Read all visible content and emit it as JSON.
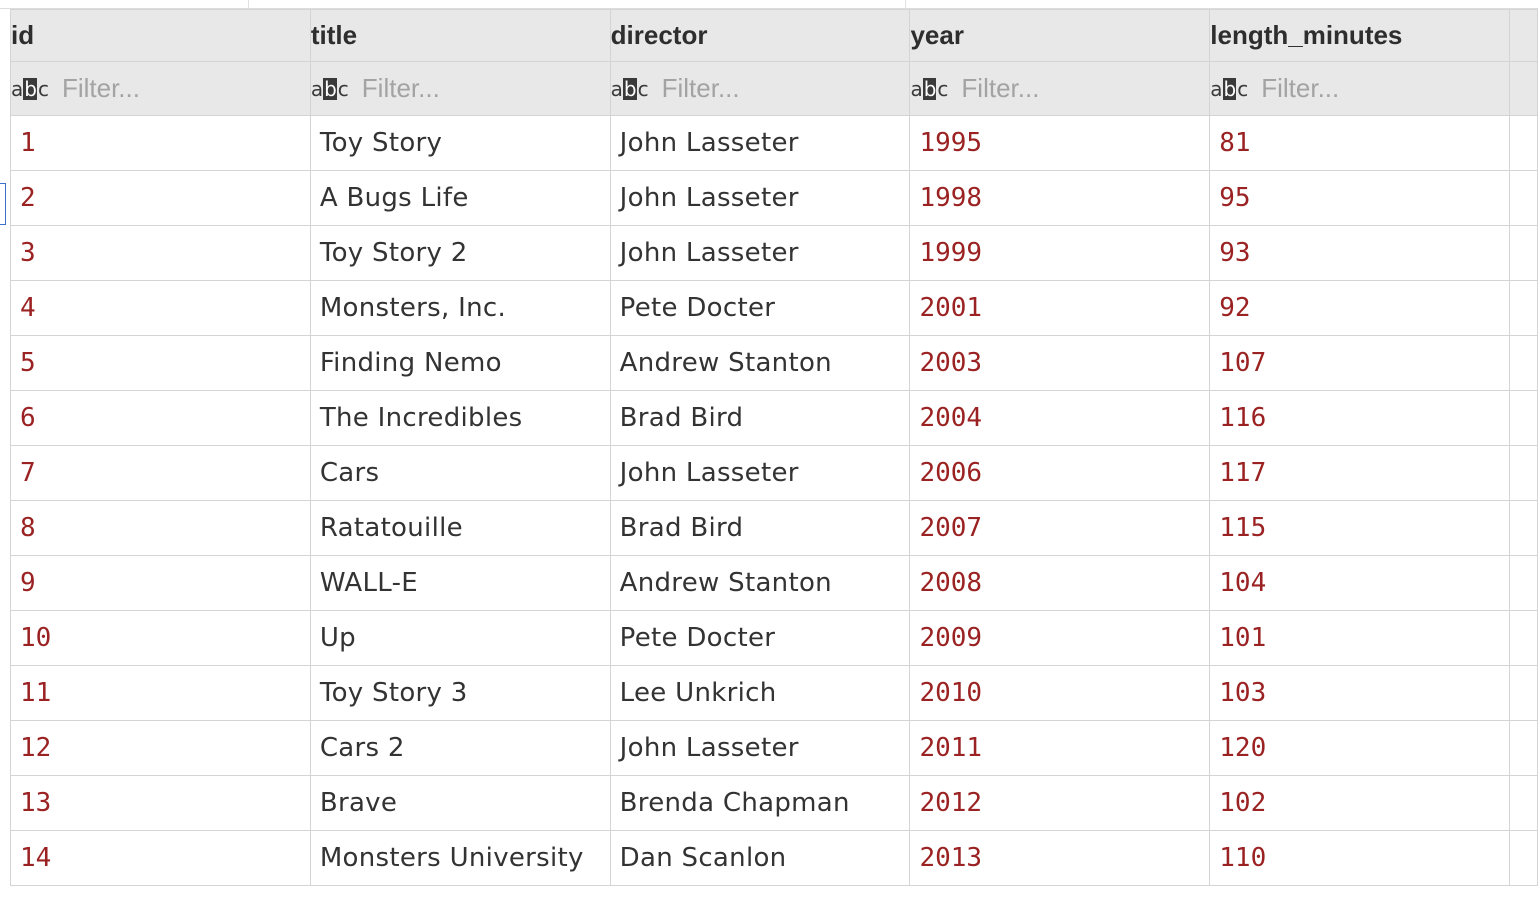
{
  "table": {
    "columns": [
      "id",
      "title",
      "director",
      "year",
      "length_minutes"
    ],
    "filter_placeholder": "Filter...",
    "filter_type_icon": "abc-text-type-icon",
    "rows": [
      [
        "1",
        "Toy Story",
        "John Lasseter",
        "1995",
        "81"
      ],
      [
        "2",
        "A Bugs Life",
        "John Lasseter",
        "1998",
        "95"
      ],
      [
        "3",
        "Toy Story 2",
        "John Lasseter",
        "1999",
        "93"
      ],
      [
        "4",
        "Monsters, Inc.",
        "Pete Docter",
        "2001",
        "92"
      ],
      [
        "5",
        "Finding Nemo",
        "Andrew Stanton",
        "2003",
        "107"
      ],
      [
        "6",
        "The Incredibles",
        "Brad Bird",
        "2004",
        "116"
      ],
      [
        "7",
        "Cars",
        "John Lasseter",
        "2006",
        "117"
      ],
      [
        "8",
        "Ratatouille",
        "Brad Bird",
        "2007",
        "115"
      ],
      [
        "9",
        "WALL-E",
        "Andrew Stanton",
        "2008",
        "104"
      ],
      [
        "10",
        "Up",
        "Pete Docter",
        "2009",
        "101"
      ],
      [
        "11",
        "Toy Story 3",
        "Lee Unkrich",
        "2010",
        "103"
      ],
      [
        "12",
        "Cars 2",
        "John Lasseter",
        "2011",
        "120"
      ],
      [
        "13",
        "Brave",
        "Brenda Chapman",
        "2012",
        "102"
      ],
      [
        "14",
        "Monsters University",
        "Dan Scanlon",
        "2013",
        "110"
      ]
    ],
    "numeric_color": "#9b2222",
    "text_color": "#333333",
    "header_bg": "#e8e8e8"
  }
}
